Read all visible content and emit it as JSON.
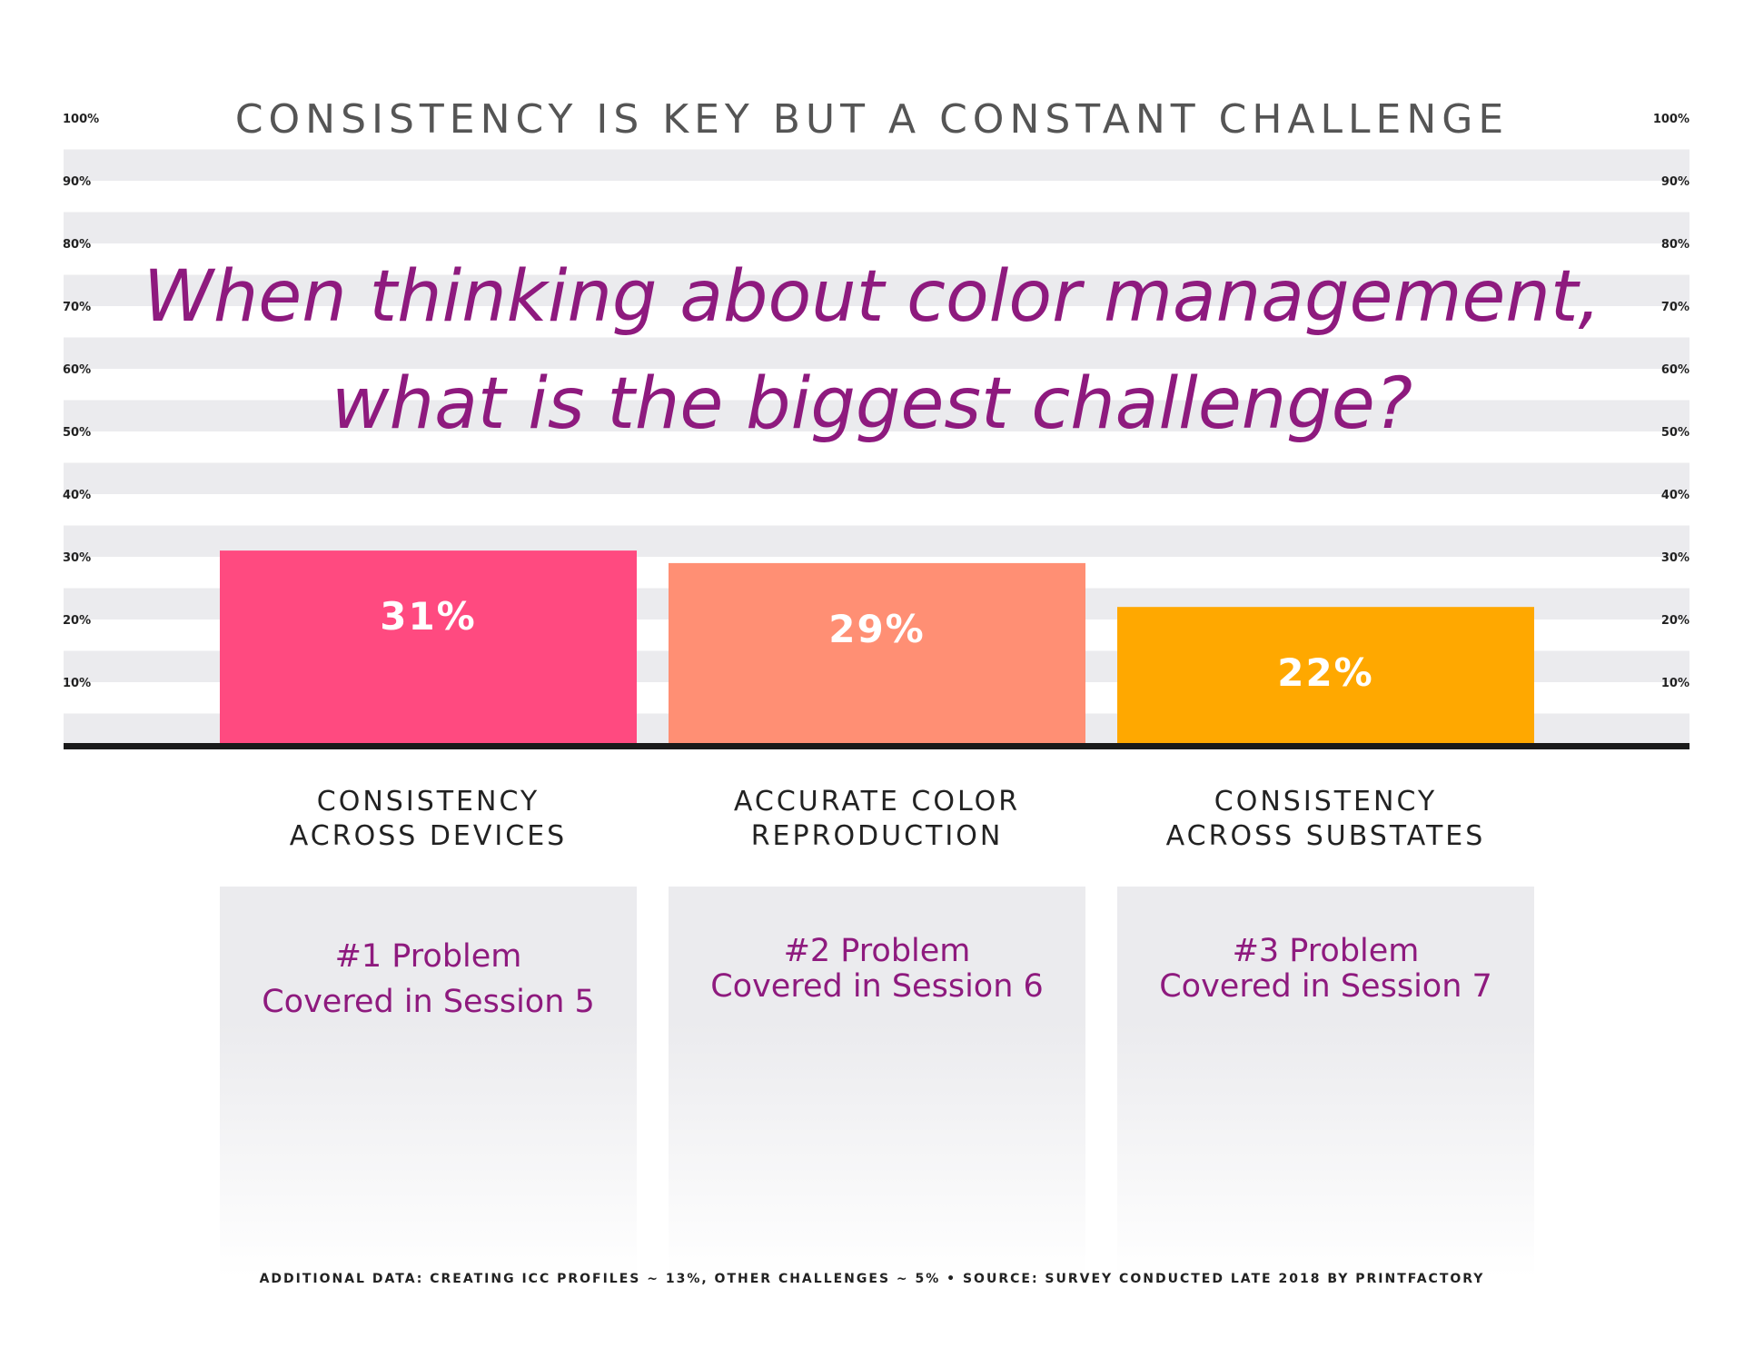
{
  "chart_data": {
    "type": "bar",
    "title": "CONSISTENCY IS KEY BUT A CONSTANT CHALLENGE",
    "subtitle_lines": [
      "When thinking about color management,",
      "what is the biggest challenge?"
    ],
    "categories": [
      [
        "CONSISTENCY",
        "ACROSS DEVICES"
      ],
      [
        "ACCURATE COLOR",
        "REPRODUCTION"
      ],
      [
        "CONSISTENCY",
        "ACROSS SUBSTATES"
      ]
    ],
    "values": [
      31,
      29,
      22
    ],
    "value_labels": [
      "31%",
      "29%",
      "22%"
    ],
    "bar_colors": [
      "#ff4a80",
      "#ff8f74",
      "#ffa800"
    ],
    "ylim": [
      0,
      100
    ],
    "y_ticks": [
      10,
      20,
      30,
      40,
      50,
      60,
      70,
      80,
      90,
      100
    ],
    "y_tick_labels": [
      "10%",
      "20%",
      "30%",
      "40%",
      "50%",
      "60%",
      "70%",
      "80%",
      "90%",
      "100%"
    ],
    "y_axis_sides": [
      "left",
      "right"
    ],
    "grid": "alternating horizontal bands",
    "legend": "none"
  },
  "info_panels": [
    {
      "lines": [
        "#1 Problem",
        "Covered in Session 5"
      ]
    },
    {
      "lines": [
        "#2 Problem",
        "Covered in Session 6"
      ]
    },
    {
      "lines": [
        "#3 Problem",
        "Covered in Session 7"
      ]
    }
  ],
  "footnote": "ADDITIONAL DATA:  CREATING ICC PROFILES ~ 13%, OTHER CHALLENGES ~ 5% • SOURCE: SURVEY CONDUCTED LATE 2018 BY PRINTFACTORY",
  "colors": {
    "accent_purple": "#8e1a7e",
    "title_gray": "#555555",
    "band_gray": "#ebebee",
    "axis_black": "#1a1a1a"
  }
}
